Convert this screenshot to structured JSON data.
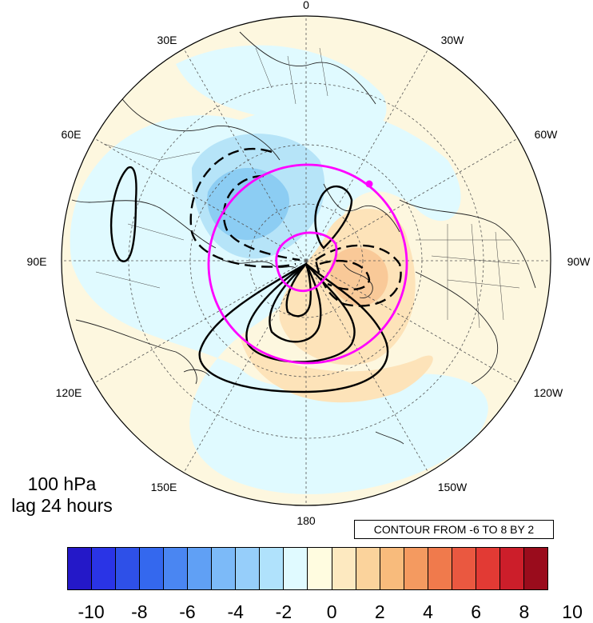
{
  "map": {
    "projection": "north polar stereographic",
    "longitude_labels": [
      {
        "text": "0",
        "lon": 0
      },
      {
        "text": "30W",
        "lon": -30
      },
      {
        "text": "60W",
        "lon": -60
      },
      {
        "text": "90W",
        "lon": -90
      },
      {
        "text": "120W",
        "lon": -120
      },
      {
        "text": "150W",
        "lon": -150
      },
      {
        "text": "180",
        "lon": 180
      },
      {
        "text": "150E",
        "lon": 150
      },
      {
        "text": "120E",
        "lon": 120
      },
      {
        "text": "90E",
        "lon": 90
      },
      {
        "text": "60E",
        "lon": 60
      },
      {
        "text": "30E",
        "lon": 30
      }
    ],
    "colors": {
      "magenta_contour": "#ff00ff",
      "anomaly_contour": "#000000",
      "ocean_background": "#e0faff",
      "positive_anomaly": "#fde3b9",
      "negative_anomaly": "#a9dcf5"
    }
  },
  "caption": {
    "line1": "100 hPa",
    "line2": "lag 24 hours"
  },
  "contour_note": "CONTOUR FROM -6 TO 8 BY 2",
  "colorbar": {
    "colors": [
      "#2418c8",
      "#2a34e6",
      "#2e50e8",
      "#3468ee",
      "#4a86f2",
      "#60a0f5",
      "#7cbaf8",
      "#96ceFA",
      "#b0e2fc",
      "#e0faff",
      "#fffce0",
      "#fde9c0",
      "#fbd39c",
      "#f8bb7c",
      "#f49a60",
      "#f07a4c",
      "#ea5840",
      "#e23a34",
      "#cc1e2a",
      "#9a0c1c"
    ],
    "labels": [
      "-10",
      "-8",
      "-6",
      "-4",
      "-2",
      "0",
      "2",
      "4",
      "6",
      "8",
      "10"
    ]
  }
}
